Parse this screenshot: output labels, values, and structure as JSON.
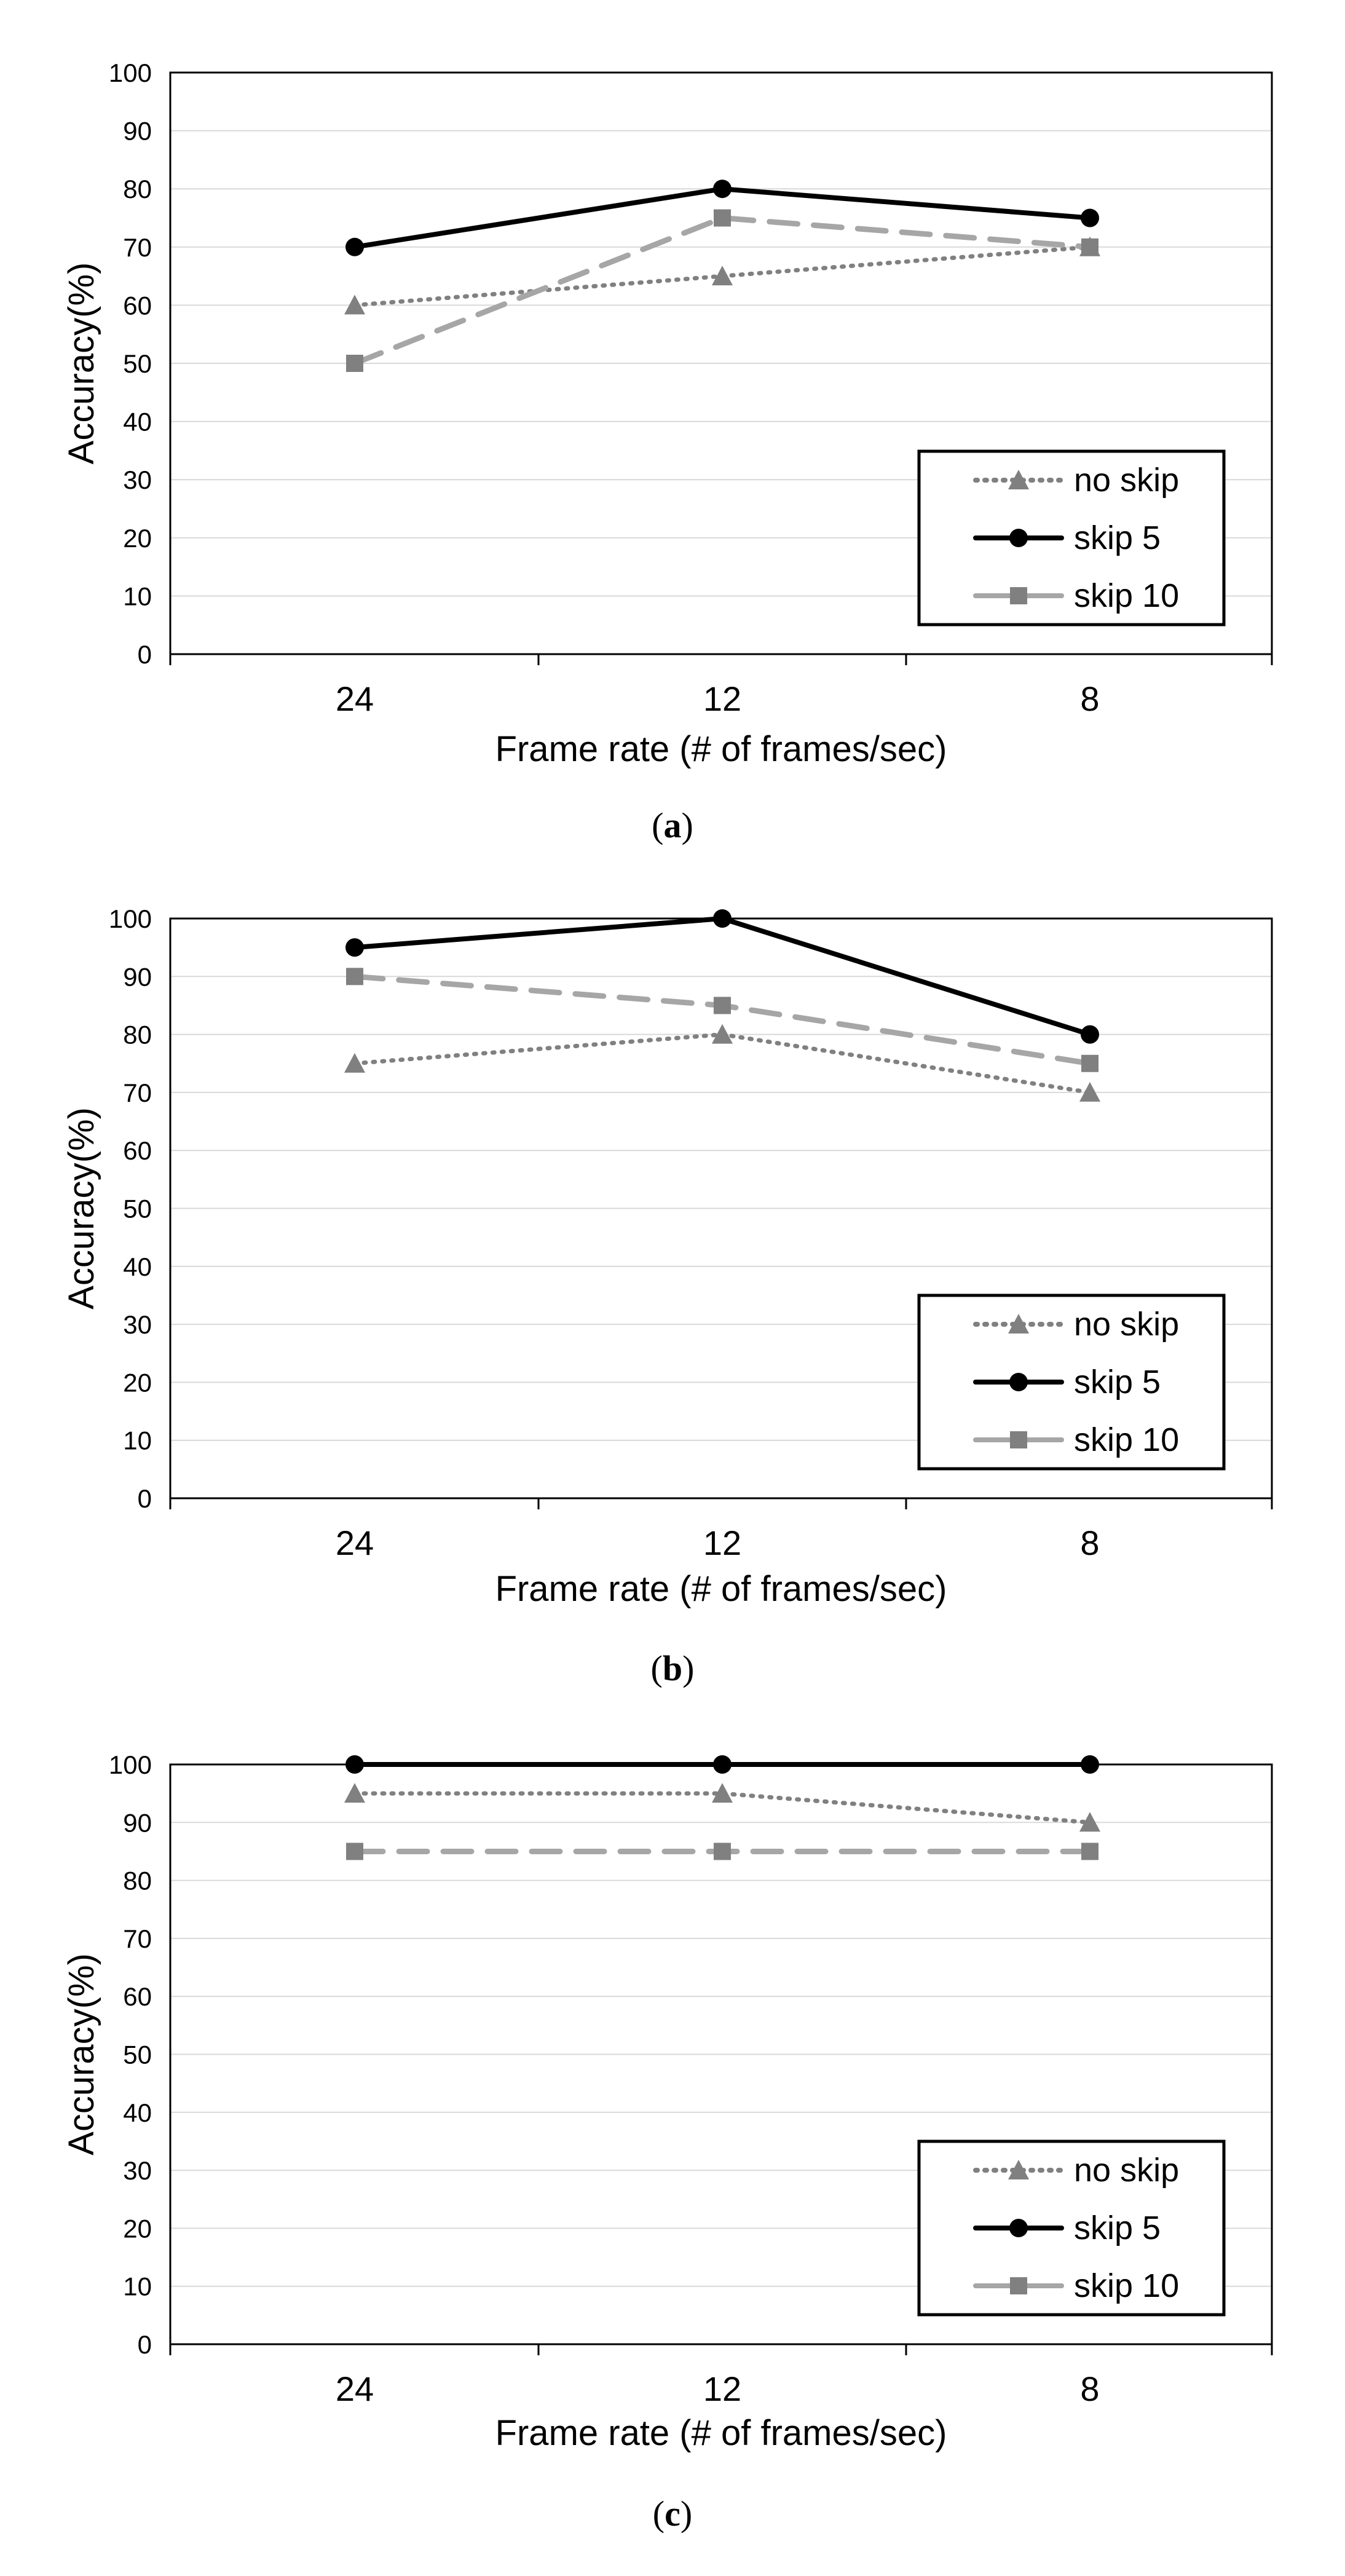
{
  "chart_data": [
    {
      "type": "line",
      "categories": [
        "24",
        "12",
        "8"
      ],
      "ylim": [
        0,
        100
      ],
      "yticks": [
        0,
        10,
        20,
        30,
        40,
        50,
        60,
        70,
        80,
        90,
        100
      ],
      "grid": true,
      "xlabel": "Frame rate (# of frames/sec)",
      "ylabel": "Accuracy(%)",
      "caption": "(a)",
      "caption_letter": "a",
      "legend_position": "bottom-right",
      "series": [
        {
          "name": "no skip",
          "values": [
            60,
            65,
            70
          ],
          "color": "#808080",
          "marker": "triangle",
          "dash": "dotted"
        },
        {
          "name": "skip 5",
          "values": [
            70,
            80,
            75
          ],
          "color": "#000000",
          "marker": "circle",
          "dash": "solid"
        },
        {
          "name": "skip 10",
          "values": [
            50,
            75,
            70
          ],
          "color": "#a6a6a6",
          "marker": "square",
          "dash": "dashed"
        }
      ]
    },
    {
      "type": "line",
      "categories": [
        "24",
        "12",
        "8"
      ],
      "ylim": [
        0,
        100
      ],
      "yticks": [
        0,
        10,
        20,
        30,
        40,
        50,
        60,
        70,
        80,
        90,
        100
      ],
      "grid": true,
      "xlabel": "Frame rate (# of frames/sec)",
      "ylabel": "Accuracy(%)",
      "caption": "(b)",
      "caption_letter": "b",
      "legend_position": "bottom-right",
      "series": [
        {
          "name": "no skip",
          "values": [
            75,
            80,
            70
          ],
          "color": "#808080",
          "marker": "triangle",
          "dash": "dotted"
        },
        {
          "name": "skip 5",
          "values": [
            95,
            100,
            80
          ],
          "color": "#000000",
          "marker": "circle",
          "dash": "solid"
        },
        {
          "name": "skip 10",
          "values": [
            90,
            85,
            75
          ],
          "color": "#a6a6a6",
          "marker": "square",
          "dash": "dashed"
        }
      ]
    },
    {
      "type": "line",
      "categories": [
        "24",
        "12",
        "8"
      ],
      "ylim": [
        0,
        100
      ],
      "yticks": [
        0,
        10,
        20,
        30,
        40,
        50,
        60,
        70,
        80,
        90,
        100
      ],
      "grid": true,
      "xlabel": "Frame rate (# of frames/sec)",
      "ylabel": "Accuracy(%)",
      "caption": "(c)",
      "caption_letter": "c",
      "legend_position": "bottom-right",
      "series": [
        {
          "name": "no skip",
          "values": [
            95,
            95,
            90
          ],
          "color": "#808080",
          "marker": "triangle",
          "dash": "dotted"
        },
        {
          "name": "skip 5",
          "values": [
            100,
            100,
            100
          ],
          "color": "#000000",
          "marker": "circle",
          "dash": "solid"
        },
        {
          "name": "skip 10",
          "values": [
            85,
            85,
            85
          ],
          "color": "#a6a6a6",
          "marker": "square",
          "dash": "dashed"
        }
      ]
    }
  ]
}
